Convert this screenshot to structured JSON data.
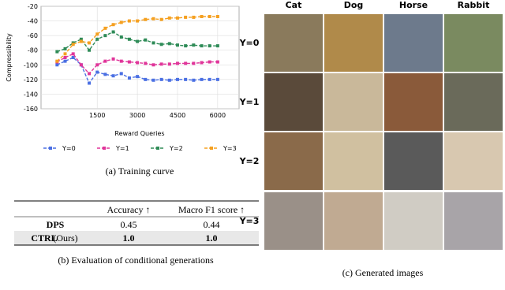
{
  "chart_data": {
    "type": "line",
    "ylabel": "Compressibility",
    "xlabel": "Reward Queries",
    "x": [
      0,
      300,
      600,
      900,
      1200,
      1500,
      1800,
      2100,
      2400,
      2700,
      3000,
      3300,
      3600,
      3900,
      4200,
      4500,
      4800,
      5100,
      5400,
      5700,
      6000
    ],
    "xlim": [
      -600,
      6800
    ],
    "xticks": [
      1500,
      3000,
      4500,
      6000
    ],
    "ylim": [
      -160,
      -20
    ],
    "yticks": [
      -20,
      -40,
      -60,
      -80,
      -100,
      -120,
      -140,
      -160
    ],
    "grid": true,
    "series": [
      {
        "name": "Y=0",
        "color": "#4a6fe3",
        "values": [
          -100,
          -95,
          -90,
          -100,
          -125,
          -110,
          -113,
          -115,
          -112,
          -118,
          -116,
          -120,
          -121,
          -120,
          -121,
          -120,
          -120,
          -121,
          -120,
          -120,
          -120
        ]
      },
      {
        "name": "Y=1",
        "color": "#e0359a",
        "values": [
          -96,
          -90,
          -85,
          -100,
          -112,
          -100,
          -95,
          -92,
          -95,
          -96,
          -97,
          -98,
          -100,
          -99,
          -99,
          -98,
          -98,
          -98,
          -97,
          -96,
          -96
        ]
      },
      {
        "name": "Y=2",
        "color": "#2e8b57",
        "values": [
          -82,
          -78,
          -70,
          -65,
          -80,
          -65,
          -60,
          -55,
          -62,
          -65,
          -68,
          -66,
          -70,
          -72,
          -71,
          -73,
          -74,
          -73,
          -74,
          -74,
          -74
        ]
      },
      {
        "name": "Y=3",
        "color": "#f5a020",
        "values": [
          -95,
          -85,
          -72,
          -68,
          -70,
          -58,
          -50,
          -45,
          -42,
          -40,
          -40,
          -38,
          -37,
          -38,
          -36,
          -36,
          -35,
          -35,
          -34,
          -34,
          -34
        ]
      }
    ],
    "caption": "(a) Training curve"
  },
  "table": {
    "header": [
      "Accuracy ↑",
      "Macro F1 score ↑"
    ],
    "rows": [
      [
        "DPS",
        "0.45",
        "0.44"
      ],
      [
        "CTRL",
        "1.0",
        "1.0"
      ]
    ],
    "ours": "(Ours)",
    "caption": "(b) Evaluation of conditional generations"
  },
  "images": {
    "columns": [
      "Cat",
      "Dog",
      "Horse",
      "Rabbit"
    ],
    "rows": [
      "Y=0",
      "Y=1",
      "Y=2",
      "Y=3"
    ],
    "caption": "(c) Generated images"
  }
}
